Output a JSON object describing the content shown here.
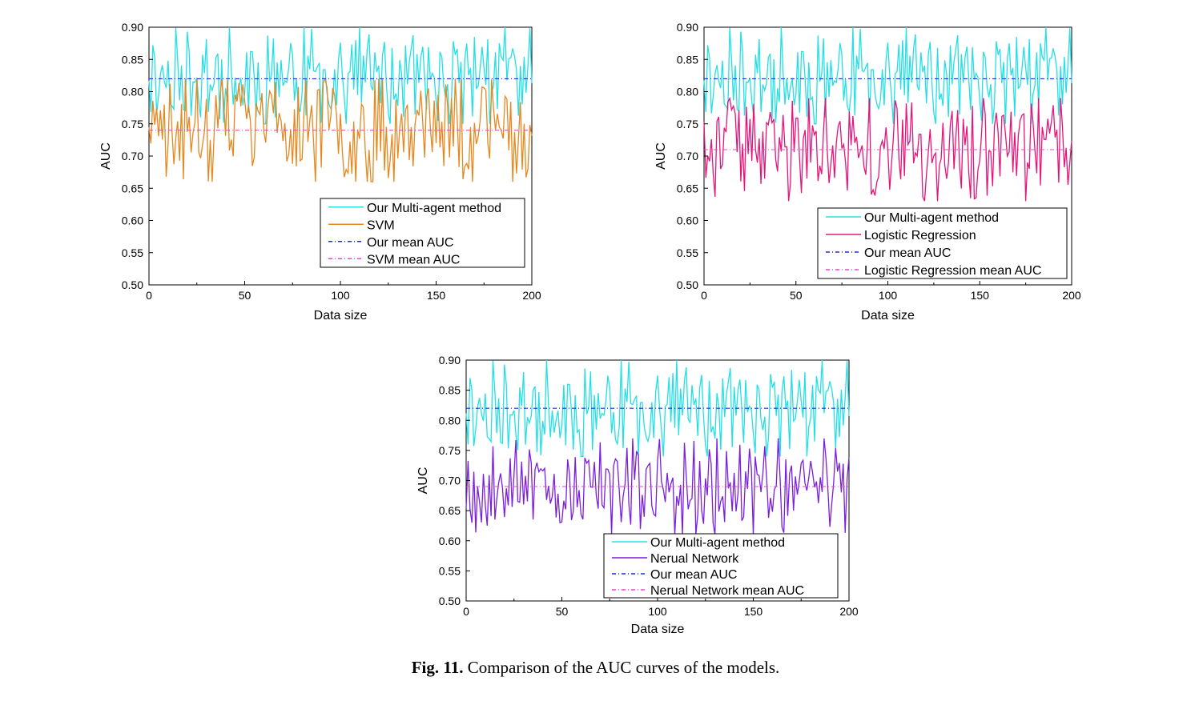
{
  "caption": {
    "label": "Fig. 11.",
    "text": "Comparison of the AUC curves of the models."
  },
  "chart_data": [
    {
      "type": "line",
      "xlabel": "Data size",
      "ylabel": "AUC",
      "xlim": [
        0,
        200
      ],
      "ylim": [
        0.5,
        0.9
      ],
      "xticks": [
        "0",
        "50",
        "100",
        "150",
        "200"
      ],
      "yticks": [
        "0.50",
        "0.55",
        "0.60",
        "0.65",
        "0.70",
        "0.75",
        "0.80",
        "0.85",
        "0.90"
      ],
      "grid": false,
      "legend_position": "lower-right",
      "series": [
        {
          "name": "Our Multi-agent method",
          "color": "#22e0e6",
          "style": "solid",
          "x_range": [
            0,
            200
          ],
          "seed": 11,
          "min": 0.75,
          "max": 0.9
        },
        {
          "name": "SVM",
          "color": "#e8871e",
          "style": "solid",
          "x_range": [
            0,
            200
          ],
          "seed": 23,
          "min": 0.66,
          "max": 0.82
        },
        {
          "name": "Our mean AUC",
          "color": "#1a2fd6",
          "style": "dashdot",
          "x": [
            0,
            200
          ],
          "y": [
            0.82,
            0.82
          ]
        },
        {
          "name": "SVM mean AUC",
          "color": "#ee44cc",
          "style": "dashdot",
          "x": [
            0,
            200
          ],
          "y": [
            0.74,
            0.74
          ]
        }
      ]
    },
    {
      "type": "line",
      "xlabel": "Data size",
      "ylabel": "AUC",
      "xlim": [
        0,
        200
      ],
      "ylim": [
        0.5,
        0.9
      ],
      "xticks": [
        "0",
        "50",
        "100",
        "150",
        "200"
      ],
      "yticks": [
        "0.50",
        "0.55",
        "0.60",
        "0.65",
        "0.70",
        "0.75",
        "0.80",
        "0.85",
        "0.90"
      ],
      "grid": false,
      "legend_position": "lower-right",
      "series": [
        {
          "name": "Our Multi-agent method",
          "color": "#22e0e6",
          "style": "solid",
          "x_range": [
            0,
            200
          ],
          "seed": 11,
          "min": 0.75,
          "max": 0.9
        },
        {
          "name": "Logistic Regression",
          "color": "#e6157a",
          "style": "solid",
          "x_range": [
            0,
            200
          ],
          "seed": 37,
          "min": 0.63,
          "max": 0.79
        },
        {
          "name": "Our mean AUC",
          "color": "#1a2fd6",
          "style": "dashdot",
          "x": [
            0,
            200
          ],
          "y": [
            0.82,
            0.82
          ]
        },
        {
          "name": "Logistic Regression mean AUC",
          "color": "#ee44cc",
          "style": "dashdot",
          "x": [
            0,
            200
          ],
          "y": [
            0.71,
            0.71
          ]
        }
      ]
    },
    {
      "type": "line",
      "xlabel": "Data size",
      "ylabel": "AUC",
      "xlim": [
        0,
        200
      ],
      "ylim": [
        0.5,
        0.9
      ],
      "xticks": [
        "0",
        "50",
        "100",
        "150",
        "200"
      ],
      "yticks": [
        "0.50",
        "0.55",
        "0.60",
        "0.65",
        "0.70",
        "0.75",
        "0.80",
        "0.85",
        "0.90"
      ],
      "grid": false,
      "legend_position": "lower-right",
      "series": [
        {
          "name": "Our Multi-agent method",
          "color": "#22e0e6",
          "style": "solid",
          "x_range": [
            0,
            200
          ],
          "seed": 11,
          "min": 0.74,
          "max": 0.9
        },
        {
          "name": "Nerual Network",
          "color": "#7a1fe0",
          "style": "solid",
          "x_range": [
            0,
            200
          ],
          "seed": 53,
          "min": 0.61,
          "max": 0.77
        },
        {
          "name": "Our mean AUC",
          "color": "#1a2fd6",
          "style": "dashdot",
          "x": [
            0,
            200
          ],
          "y": [
            0.82,
            0.82
          ]
        },
        {
          "name": "Nerual Network  mean AUC",
          "color": "#ee44cc",
          "style": "dashdot",
          "x": [
            0,
            200
          ],
          "y": [
            0.69,
            0.69
          ]
        }
      ]
    }
  ]
}
